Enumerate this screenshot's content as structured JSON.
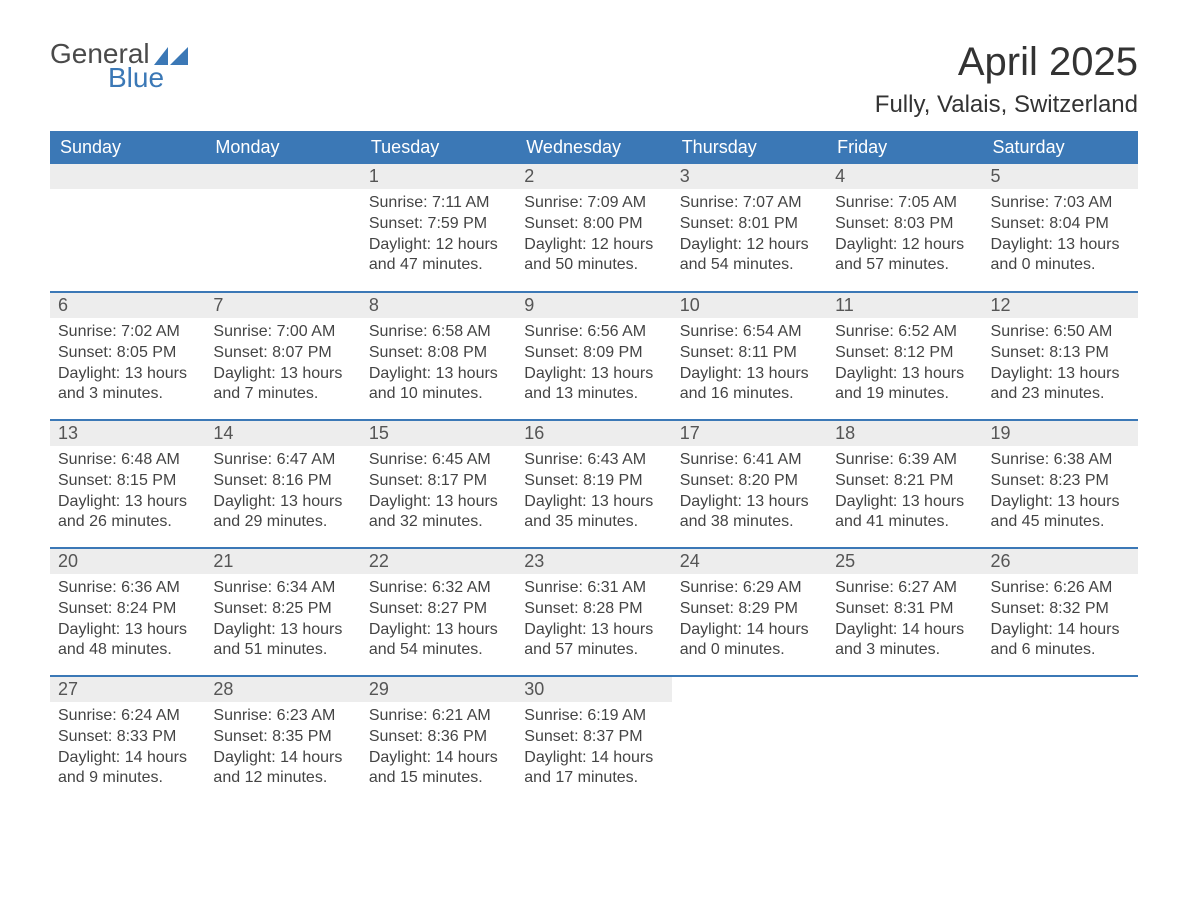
{
  "logo": {
    "word1": "General",
    "word2": "Blue",
    "accent_color": "#3b78b6",
    "text_color": "#4a4a4a"
  },
  "header": {
    "title": "April 2025",
    "location": "Fully, Valais, Switzerland"
  },
  "colors": {
    "header_bg": "#3b78b6",
    "header_text": "#ffffff",
    "daynum_bg": "#ededed",
    "text": "#444444",
    "separator": "#3b78b6",
    "background": "#ffffff"
  },
  "typography": {
    "title_fontsize": 40,
    "location_fontsize": 24,
    "header_fontsize": 18,
    "body_fontsize": 16
  },
  "labels": {
    "sunrise": "Sunrise:",
    "sunset": "Sunset:",
    "daylight": "Daylight:"
  },
  "weekdays": [
    "Sunday",
    "Monday",
    "Tuesday",
    "Wednesday",
    "Thursday",
    "Friday",
    "Saturday"
  ],
  "weeks": [
    [
      null,
      null,
      {
        "d": "1",
        "sunrise": "7:11 AM",
        "sunset": "7:59 PM",
        "daylight": "12 hours and 47 minutes."
      },
      {
        "d": "2",
        "sunrise": "7:09 AM",
        "sunset": "8:00 PM",
        "daylight": "12 hours and 50 minutes."
      },
      {
        "d": "3",
        "sunrise": "7:07 AM",
        "sunset": "8:01 PM",
        "daylight": "12 hours and 54 minutes."
      },
      {
        "d": "4",
        "sunrise": "7:05 AM",
        "sunset": "8:03 PM",
        "daylight": "12 hours and 57 minutes."
      },
      {
        "d": "5",
        "sunrise": "7:03 AM",
        "sunset": "8:04 PM",
        "daylight": "13 hours and 0 minutes."
      }
    ],
    [
      {
        "d": "6",
        "sunrise": "7:02 AM",
        "sunset": "8:05 PM",
        "daylight": "13 hours and 3 minutes."
      },
      {
        "d": "7",
        "sunrise": "7:00 AM",
        "sunset": "8:07 PM",
        "daylight": "13 hours and 7 minutes."
      },
      {
        "d": "8",
        "sunrise": "6:58 AM",
        "sunset": "8:08 PM",
        "daylight": "13 hours and 10 minutes."
      },
      {
        "d": "9",
        "sunrise": "6:56 AM",
        "sunset": "8:09 PM",
        "daylight": "13 hours and 13 minutes."
      },
      {
        "d": "10",
        "sunrise": "6:54 AM",
        "sunset": "8:11 PM",
        "daylight": "13 hours and 16 minutes."
      },
      {
        "d": "11",
        "sunrise": "6:52 AM",
        "sunset": "8:12 PM",
        "daylight": "13 hours and 19 minutes."
      },
      {
        "d": "12",
        "sunrise": "6:50 AM",
        "sunset": "8:13 PM",
        "daylight": "13 hours and 23 minutes."
      }
    ],
    [
      {
        "d": "13",
        "sunrise": "6:48 AM",
        "sunset": "8:15 PM",
        "daylight": "13 hours and 26 minutes."
      },
      {
        "d": "14",
        "sunrise": "6:47 AM",
        "sunset": "8:16 PM",
        "daylight": "13 hours and 29 minutes."
      },
      {
        "d": "15",
        "sunrise": "6:45 AM",
        "sunset": "8:17 PM",
        "daylight": "13 hours and 32 minutes."
      },
      {
        "d": "16",
        "sunrise": "6:43 AM",
        "sunset": "8:19 PM",
        "daylight": "13 hours and 35 minutes."
      },
      {
        "d": "17",
        "sunrise": "6:41 AM",
        "sunset": "8:20 PM",
        "daylight": "13 hours and 38 minutes."
      },
      {
        "d": "18",
        "sunrise": "6:39 AM",
        "sunset": "8:21 PM",
        "daylight": "13 hours and 41 minutes."
      },
      {
        "d": "19",
        "sunrise": "6:38 AM",
        "sunset": "8:23 PM",
        "daylight": "13 hours and 45 minutes."
      }
    ],
    [
      {
        "d": "20",
        "sunrise": "6:36 AM",
        "sunset": "8:24 PM",
        "daylight": "13 hours and 48 minutes."
      },
      {
        "d": "21",
        "sunrise": "6:34 AM",
        "sunset": "8:25 PM",
        "daylight": "13 hours and 51 minutes."
      },
      {
        "d": "22",
        "sunrise": "6:32 AM",
        "sunset": "8:27 PM",
        "daylight": "13 hours and 54 minutes."
      },
      {
        "d": "23",
        "sunrise": "6:31 AM",
        "sunset": "8:28 PM",
        "daylight": "13 hours and 57 minutes."
      },
      {
        "d": "24",
        "sunrise": "6:29 AM",
        "sunset": "8:29 PM",
        "daylight": "14 hours and 0 minutes."
      },
      {
        "d": "25",
        "sunrise": "6:27 AM",
        "sunset": "8:31 PM",
        "daylight": "14 hours and 3 minutes."
      },
      {
        "d": "26",
        "sunrise": "6:26 AM",
        "sunset": "8:32 PM",
        "daylight": "14 hours and 6 minutes."
      }
    ],
    [
      {
        "d": "27",
        "sunrise": "6:24 AM",
        "sunset": "8:33 PM",
        "daylight": "14 hours and 9 minutes."
      },
      {
        "d": "28",
        "sunrise": "6:23 AM",
        "sunset": "8:35 PM",
        "daylight": "14 hours and 12 minutes."
      },
      {
        "d": "29",
        "sunrise": "6:21 AM",
        "sunset": "8:36 PM",
        "daylight": "14 hours and 15 minutes."
      },
      {
        "d": "30",
        "sunrise": "6:19 AM",
        "sunset": "8:37 PM",
        "daylight": "14 hours and 17 minutes."
      },
      null,
      null,
      null
    ]
  ]
}
